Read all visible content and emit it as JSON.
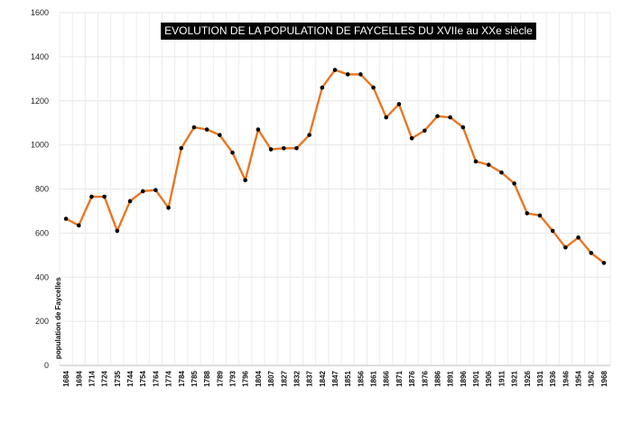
{
  "chart_data": {
    "type": "line",
    "title": "EVOLUTION DE LA POPULATION DE FAYCELLES DU XVIIe au XXe siècle",
    "xlabel": "",
    "ylabel": "population de Faycelles",
    "ylim": [
      0,
      1600
    ],
    "yticks": [
      0,
      200,
      400,
      600,
      800,
      1000,
      1200,
      1400,
      1600
    ],
    "grid": true,
    "categories": [
      "1684",
      "1694",
      "1714",
      "1724",
      "1735",
      "1744",
      "1754",
      "1764",
      "1774",
      "1784",
      "1785",
      "1788",
      "1789",
      "1793",
      "1796",
      "1804",
      "1807",
      "1827",
      "1832",
      "1837",
      "1842",
      "1847",
      "1851",
      "1856",
      "1861",
      "1866",
      "1871",
      "1876",
      "1876",
      "1886",
      "1891",
      "1896",
      "1901",
      "1906",
      "1911",
      "1921",
      "1926",
      "1931",
      "1936",
      "1946",
      "1954",
      "1962",
      "1968"
    ],
    "series": [
      {
        "values": [
          665,
          635,
          765,
          765,
          610,
          745,
          790,
          795,
          715,
          985,
          1080,
          1070,
          1045,
          965,
          840,
          1070,
          980,
          985,
          985,
          1045,
          1260,
          1340,
          1320,
          1320,
          1260,
          1125,
          1185,
          1030,
          1065,
          1130,
          1125,
          1080,
          925,
          910,
          875,
          825,
          690,
          680,
          610,
          535,
          580,
          510,
          465
        ],
        "color": "#E87722",
        "marker_color": "#000000"
      }
    ]
  }
}
